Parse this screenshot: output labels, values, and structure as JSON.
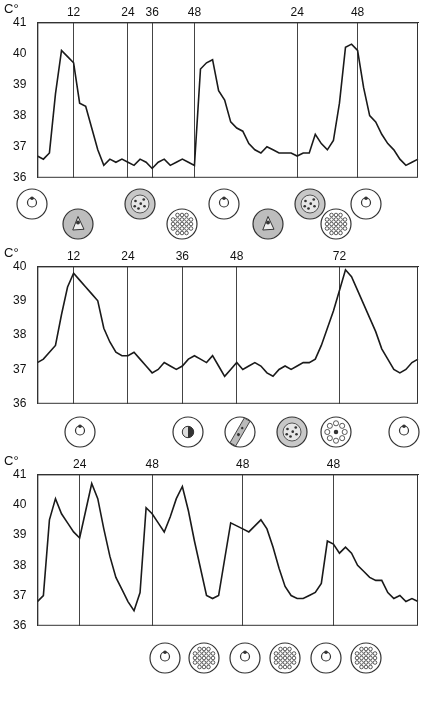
{
  "chart_data": [
    {
      "type": "line",
      "y_label": "C°",
      "color": "#1a1a1a",
      "grid": "x",
      "categories": [
        null,
        null,
        null,
        null,
        null,
        null,
        "12",
        null,
        null,
        null,
        null,
        null,
        null,
        null,
        null,
        "24",
        null,
        null,
        null,
        "36",
        null,
        null,
        null,
        null,
        null,
        null,
        "48",
        null,
        null,
        null,
        null,
        null,
        null,
        null,
        null,
        null,
        null,
        null,
        null,
        null,
        null,
        null,
        null,
        "24",
        null,
        null,
        null,
        null,
        null,
        null,
        null,
        null,
        null,
        "48",
        null,
        null,
        null,
        null,
        null,
        null,
        null,
        null,
        null,
        null
      ],
      "values": [
        36.7,
        36.6,
        36.8,
        38.7,
        40.1,
        39.9,
        39.7,
        38.4,
        38.3,
        37.6,
        36.9,
        36.4,
        36.6,
        36.5,
        36.6,
        36.5,
        36.4,
        36.6,
        36.5,
        36.3,
        36.5,
        36.6,
        36.4,
        36.5,
        36.6,
        36.5,
        36.4,
        39.5,
        39.7,
        39.8,
        38.8,
        38.5,
        37.8,
        37.6,
        37.5,
        37.1,
        36.9,
        36.8,
        37.0,
        36.9,
        36.8,
        36.8,
        36.8,
        36.7,
        36.8,
        36.8,
        37.4,
        37.1,
        36.9,
        37.2,
        38.4,
        40.2,
        40.3,
        40.1,
        38.9,
        38.0,
        37.8,
        37.4,
        37.1,
        36.9,
        36.6,
        36.4,
        36.5,
        36.6
      ],
      "ylim": [
        36,
        41
      ],
      "yticks": [
        36,
        37,
        38,
        39,
        40,
        41
      ]
    },
    {
      "type": "line",
      "y_label": "C°",
      "color": "#1a1a1a",
      "grid": "x",
      "categories": [
        null,
        null,
        null,
        null,
        null,
        null,
        "12",
        null,
        null,
        null,
        null,
        null,
        null,
        null,
        null,
        "24",
        null,
        null,
        null,
        null,
        null,
        null,
        null,
        null,
        "36",
        null,
        null,
        null,
        null,
        null,
        null,
        null,
        null,
        "48",
        null,
        null,
        null,
        null,
        null,
        null,
        null,
        null,
        null,
        null,
        null,
        null,
        null,
        null,
        null,
        null,
        "72",
        null,
        null,
        null,
        null,
        null,
        null,
        null,
        null,
        null,
        null,
        null,
        null,
        null
      ],
      "values": [
        37.2,
        37.3,
        37.5,
        37.7,
        38.6,
        39.4,
        39.8,
        39.6,
        39.4,
        39.2,
        39.0,
        38.2,
        37.8,
        37.5,
        37.4,
        37.4,
        37.5,
        37.3,
        37.1,
        36.9,
        37.0,
        37.2,
        37.1,
        37.0,
        37.1,
        37.3,
        37.4,
        37.3,
        37.2,
        37.4,
        37.1,
        36.8,
        37.0,
        37.2,
        37.0,
        37.1,
        37.2,
        37.1,
        36.9,
        36.8,
        37.0,
        37.1,
        37.0,
        37.1,
        37.2,
        37.2,
        37.3,
        37.7,
        38.2,
        38.7,
        39.3,
        39.9,
        39.7,
        39.3,
        38.9,
        38.5,
        38.1,
        37.6,
        37.3,
        37.0,
        36.9,
        37.0,
        37.2,
        37.3
      ],
      "ylim": [
        36,
        40
      ],
      "yticks": [
        36,
        37,
        38,
        39,
        40
      ]
    },
    {
      "type": "line",
      "y_label": "C°",
      "color": "#1a1a1a",
      "grid": "x",
      "categories": [
        null,
        null,
        null,
        null,
        null,
        null,
        null,
        "24",
        null,
        null,
        null,
        null,
        null,
        null,
        null,
        null,
        null,
        null,
        null,
        "48",
        null,
        null,
        null,
        null,
        null,
        null,
        null,
        null,
        null,
        null,
        null,
        null,
        null,
        null,
        "48",
        null,
        null,
        null,
        null,
        null,
        null,
        null,
        null,
        null,
        null,
        null,
        null,
        null,
        null,
        "48",
        null,
        null,
        null,
        null,
        null,
        null,
        null,
        null,
        null,
        null,
        null,
        null,
        null,
        null
      ],
      "values": [
        36.8,
        37.0,
        39.5,
        40.2,
        39.7,
        39.4,
        39.1,
        38.9,
        39.8,
        40.7,
        40.2,
        39.2,
        38.3,
        37.6,
        37.2,
        36.8,
        36.5,
        37.1,
        39.9,
        39.7,
        39.4,
        39.1,
        39.6,
        40.2,
        40.6,
        39.8,
        38.8,
        37.9,
        37.0,
        36.9,
        37.0,
        38.2,
        39.4,
        39.3,
        39.2,
        39.1,
        39.3,
        39.5,
        39.2,
        38.6,
        37.9,
        37.3,
        37.0,
        36.9,
        36.9,
        37.0,
        37.1,
        37.4,
        38.8,
        38.7,
        38.4,
        38.6,
        38.4,
        38.0,
        37.8,
        37.6,
        37.5,
        37.5,
        37.1,
        36.9,
        37.0,
        36.8,
        36.9,
        36.8
      ],
      "ylim": [
        36,
        41
      ],
      "yticks": [
        36,
        37,
        38,
        39,
        40,
        41
      ]
    }
  ]
}
